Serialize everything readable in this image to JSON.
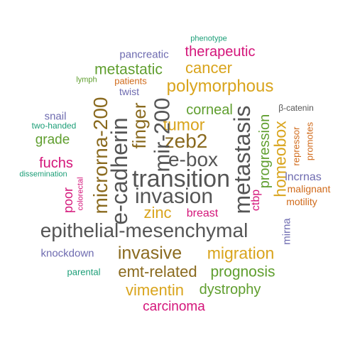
{
  "words": [
    {
      "id": "phenotype",
      "text": "phenotype",
      "color": "teal"
    },
    {
      "id": "therapeutic",
      "text": "therapeutic",
      "color": "pink"
    },
    {
      "id": "pancreatic",
      "text": "pancreatic",
      "color": "purple"
    },
    {
      "id": "cancer",
      "text": "cancer",
      "color": "gold"
    },
    {
      "id": "metastatic",
      "text": "metastatic",
      "color": "green"
    },
    {
      "id": "patients",
      "text": "patients",
      "color": "orange"
    },
    {
      "id": "lymph",
      "text": "lymph",
      "color": "green"
    },
    {
      "id": "polymorphous",
      "text": "polymorphous",
      "color": "gold"
    },
    {
      "id": "twist",
      "text": "twist",
      "color": "purple"
    },
    {
      "id": "microrna200",
      "text": "microrna-200",
      "color": "brown"
    },
    {
      "id": "mir200",
      "text": "mir-200",
      "color": "gray"
    },
    {
      "id": "corneal",
      "text": "corneal",
      "color": "green"
    },
    {
      "id": "metastasis",
      "text": "metastasis",
      "color": "gray"
    },
    {
      "id": "progression",
      "text": "progression",
      "color": "green"
    },
    {
      "id": "betacatenin",
      "text": "β-catenin",
      "color": "teal"
    },
    {
      "id": "snail",
      "text": "snail",
      "color": "purple"
    },
    {
      "id": "twohanded",
      "text": "two-handed",
      "color": "teal"
    },
    {
      "id": "finger",
      "text": "finger",
      "color": "brown"
    },
    {
      "id": "tumor",
      "text": "tumor",
      "color": "gold"
    },
    {
      "id": "homeobox",
      "text": "homeobox",
      "color": "gold"
    },
    {
      "id": "repressor",
      "text": "repressor",
      "color": "orange"
    },
    {
      "id": "promotes",
      "text": "promotes",
      "color": "orange"
    },
    {
      "id": "grade",
      "text": "grade",
      "color": "green"
    },
    {
      "id": "ecadherin",
      "text": "e-cadherin",
      "color": "gray"
    },
    {
      "id": "zeb2",
      "text": "zeb2",
      "color": "brown"
    },
    {
      "id": "ebox",
      "text": "e-box",
      "color": "gray"
    },
    {
      "id": "fuchs",
      "text": "fuchs",
      "color": "pink"
    },
    {
      "id": "dissemination",
      "text": "dissemination",
      "color": "teal"
    },
    {
      "id": "lncrnas",
      "text": "lncrnas",
      "color": "purple"
    },
    {
      "id": "transition",
      "text": "transition",
      "color": "gray"
    },
    {
      "id": "malignant",
      "text": "malignant",
      "color": "orange"
    },
    {
      "id": "poor",
      "text": "poor",
      "color": "pink"
    },
    {
      "id": "colorectal",
      "text": "colorectal",
      "color": "pink"
    },
    {
      "id": "invasion",
      "text": "invasion",
      "color": "gray"
    },
    {
      "id": "ctbp",
      "text": "ctbp",
      "color": "pink"
    },
    {
      "id": "motility",
      "text": "motility",
      "color": "orange"
    },
    {
      "id": "zinc",
      "text": "zinc",
      "color": "gold"
    },
    {
      "id": "breast",
      "text": "breast",
      "color": "pink"
    },
    {
      "id": "mirna",
      "text": "mirna",
      "color": "purple"
    },
    {
      "id": "epithelialmesenchymal",
      "text": "epithelial-mesenchymal",
      "color": "gray"
    },
    {
      "id": "knockdown",
      "text": "knockdown",
      "color": "purple"
    },
    {
      "id": "invasive",
      "text": "invasive",
      "color": "brown"
    },
    {
      "id": "migration",
      "text": "migration",
      "color": "gold"
    },
    {
      "id": "parental",
      "text": "parental",
      "color": "teal"
    },
    {
      "id": "emtrelated",
      "text": "emt-related",
      "color": "brown"
    },
    {
      "id": "prognosis",
      "text": "prognosis",
      "color": "green"
    },
    {
      "id": "vimentin",
      "text": "vimentin",
      "color": "gold"
    },
    {
      "id": "dystrophy",
      "text": "dystrophy",
      "color": "green"
    },
    {
      "id": "carcinoma",
      "text": "carcinoma",
      "color": "pink"
    }
  ]
}
